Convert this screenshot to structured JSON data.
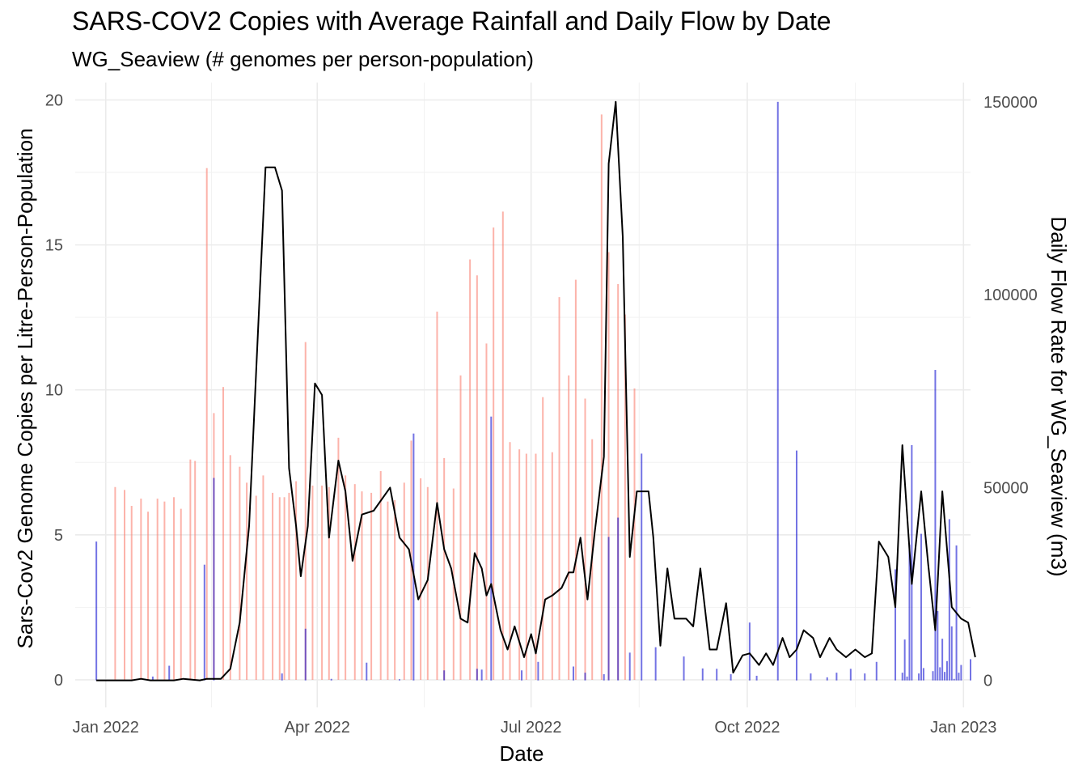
{
  "chart_data": {
    "type": "bar+line",
    "title": "SARS-COV2 Copies with Average Rainfall and Daily Flow by Date",
    "subtitle": "WG_Seaview (# genomes per person-population)",
    "xlabel": "Date",
    "ylabel_left": "Sars-Cov2 Genome Copies per Litre-Person-Population",
    "ylabel_right": "Daily Flow Rate for WG_Seaview (m3)",
    "xlim": [
      "2021-12-19",
      "2023-01-04"
    ],
    "x_ticks": [
      {
        "date": "2022-01-01",
        "label": "Jan 2022"
      },
      {
        "date": "2022-04-01",
        "label": "Apr 2022"
      },
      {
        "date": "2022-07-01",
        "label": "Jul 2022"
      },
      {
        "date": "2022-10-01",
        "label": "Oct 2022"
      },
      {
        "date": "2023-01-01",
        "label": "Jan 2023"
      }
    ],
    "y_left": {
      "min": -0.95,
      "max": 20.6,
      "ticks": [
        0,
        5,
        10,
        15,
        20
      ],
      "tick_labels": [
        "0",
        "5",
        "10",
        "15",
        "20"
      ]
    },
    "y_right": {
      "min": -7000,
      "max": 155000,
      "ticks": [
        0,
        50000,
        100000,
        150000
      ],
      "tick_labels": [
        "0",
        "50000",
        "100000",
        "150000"
      ]
    },
    "grid": true,
    "colors": {
      "sars_bars": "#fa8072",
      "rainfall_bars": "#0000cd",
      "flow_line": "#000000",
      "grid": "#ebebeb"
    },
    "series": [
      {
        "type": "bar",
        "axis": "left",
        "color": "#fa8072",
        "points": [
          [
            "2022-01-05",
            6.65
          ],
          [
            "2022-01-09",
            6.55
          ],
          [
            "2022-01-12",
            6.0
          ],
          [
            "2022-01-16",
            6.25
          ],
          [
            "2022-01-19",
            5.8
          ],
          [
            "2022-01-23",
            6.25
          ],
          [
            "2022-01-26",
            6.15
          ],
          [
            "2022-01-30",
            6.3
          ],
          [
            "2022-02-02",
            5.9
          ],
          [
            "2022-02-06",
            7.6
          ],
          [
            "2022-02-08",
            7.55
          ],
          [
            "2022-02-13",
            17.65
          ],
          [
            "2022-02-16",
            9.2
          ],
          [
            "2022-02-20",
            10.1
          ],
          [
            "2022-02-23",
            7.75
          ],
          [
            "2022-02-27",
            7.35
          ],
          [
            "2022-03-02",
            6.8
          ],
          [
            "2022-03-06",
            6.35
          ],
          [
            "2022-03-09",
            7.05
          ],
          [
            "2022-03-13",
            6.45
          ],
          [
            "2022-03-16",
            6.3
          ],
          [
            "2022-03-18",
            6.3
          ],
          [
            "2022-03-20",
            6.45
          ],
          [
            "2022-03-23",
            6.85
          ],
          [
            "2022-03-27",
            11.65
          ],
          [
            "2022-03-30",
            6.7
          ],
          [
            "2022-04-03",
            6.7
          ],
          [
            "2022-04-06",
            6.65
          ],
          [
            "2022-04-10",
            8.35
          ],
          [
            "2022-04-13",
            7.05
          ],
          [
            "2022-04-17",
            6.75
          ],
          [
            "2022-04-20",
            6.5
          ],
          [
            "2022-04-24",
            6.45
          ],
          [
            "2022-04-28",
            7.2
          ],
          [
            "2022-05-01",
            6.15
          ],
          [
            "2022-05-04",
            6.2
          ],
          [
            "2022-05-08",
            6.8
          ],
          [
            "2022-05-11",
            8.25
          ],
          [
            "2022-05-15",
            6.95
          ],
          [
            "2022-05-18",
            6.65
          ],
          [
            "2022-05-22",
            12.7
          ],
          [
            "2022-05-25",
            7.65
          ],
          [
            "2022-05-29",
            6.6
          ],
          [
            "2022-06-01",
            10.5
          ],
          [
            "2022-06-05",
            14.5
          ],
          [
            "2022-06-08",
            13.95
          ],
          [
            "2022-06-12",
            11.6
          ],
          [
            "2022-06-15",
            15.6
          ],
          [
            "2022-06-19",
            16.15
          ],
          [
            "2022-06-22",
            8.2
          ],
          [
            "2022-06-26",
            7.95
          ],
          [
            "2022-06-29",
            7.8
          ],
          [
            "2022-07-03",
            7.8
          ],
          [
            "2022-07-06",
            9.75
          ],
          [
            "2022-07-10",
            7.85
          ],
          [
            "2022-07-13",
            13.2
          ],
          [
            "2022-07-17",
            10.5
          ],
          [
            "2022-07-20",
            13.8
          ],
          [
            "2022-07-24",
            9.7
          ],
          [
            "2022-07-27",
            8.3
          ],
          [
            "2022-07-31",
            19.5
          ],
          [
            "2022-08-03",
            14.75
          ],
          [
            "2022-08-07",
            13.65
          ],
          [
            "2022-08-10",
            12.6
          ],
          [
            "2022-08-14",
            10.05
          ]
        ]
      },
      {
        "type": "bar",
        "axis": "right",
        "color": "#0000cd",
        "points": [
          [
            "2021-12-28",
            36000
          ],
          [
            "2022-01-21",
            1000
          ],
          [
            "2022-01-28",
            3800
          ],
          [
            "2022-02-12",
            30000
          ],
          [
            "2022-02-16",
            52500
          ],
          [
            "2022-03-17",
            1800
          ],
          [
            "2022-03-27",
            13400
          ],
          [
            "2022-04-07",
            400
          ],
          [
            "2022-04-22",
            4600
          ],
          [
            "2022-05-06",
            300
          ],
          [
            "2022-05-12",
            64000
          ],
          [
            "2022-05-25",
            2600
          ],
          [
            "2022-06-08",
            3000
          ],
          [
            "2022-06-10",
            2800
          ],
          [
            "2022-06-14",
            68400
          ],
          [
            "2022-06-27",
            2600
          ],
          [
            "2022-07-04",
            4800
          ],
          [
            "2022-07-19",
            3600
          ],
          [
            "2022-07-24",
            2000
          ],
          [
            "2022-08-01",
            1600
          ],
          [
            "2022-08-03",
            37200
          ],
          [
            "2022-08-07",
            42200
          ],
          [
            "2022-08-12",
            7200
          ],
          [
            "2022-08-17",
            58800
          ],
          [
            "2022-08-23",
            8600
          ],
          [
            "2022-09-04",
            6200
          ],
          [
            "2022-09-12",
            3100
          ],
          [
            "2022-09-18",
            3000
          ],
          [
            "2022-09-24",
            1600
          ],
          [
            "2022-10-02",
            15000
          ],
          [
            "2022-10-05",
            1200
          ],
          [
            "2022-10-14",
            150000
          ],
          [
            "2022-10-22",
            59600
          ],
          [
            "2022-10-28",
            1800
          ],
          [
            "2022-11-04",
            800
          ],
          [
            "2022-11-08",
            2000
          ],
          [
            "2022-11-14",
            3000
          ],
          [
            "2022-11-20",
            1800
          ],
          [
            "2022-11-25",
            4800
          ],
          [
            "2022-12-03",
            28800
          ],
          [
            "2022-12-10",
            61000
          ],
          [
            "2022-12-15",
            3200
          ],
          [
            "2022-12-21",
            18000
          ],
          [
            "2022-12-26",
            41800
          ],
          [
            "2022-12-30",
            2000
          ],
          [
            "2023-01-04",
            5500
          ],
          [
            "2022-12-31",
            4000
          ],
          [
            "2022-12-25",
            5000
          ],
          [
            "2022-12-28",
            400
          ],
          [
            "2022-12-29",
            35000
          ],
          [
            "2022-12-19",
            2400
          ],
          [
            "2022-12-20",
            80500
          ],
          [
            "2022-12-22",
            3400
          ],
          [
            "2022-12-23",
            10800
          ],
          [
            "2022-12-24",
            2200
          ],
          [
            "2022-12-27",
            14000
          ],
          [
            "2022-12-14",
            38000
          ],
          [
            "2022-12-06",
            2000
          ],
          [
            "2022-12-07",
            10600
          ],
          [
            "2022-12-08",
            1000
          ],
          [
            "2022-12-09",
            35200
          ],
          [
            "2022-12-13",
            1800
          ]
        ]
      },
      {
        "type": "line",
        "axis": "right",
        "color": "#000000",
        "points": [
          [
            "2021-12-28",
            0
          ],
          [
            "2022-01-04",
            0
          ],
          [
            "2022-01-08",
            0
          ],
          [
            "2022-01-12",
            0
          ],
          [
            "2022-01-16",
            400
          ],
          [
            "2022-01-20",
            0
          ],
          [
            "2022-01-25",
            0
          ],
          [
            "2022-01-30",
            0
          ],
          [
            "2022-02-03",
            400
          ],
          [
            "2022-02-10",
            0
          ],
          [
            "2022-02-13",
            400
          ],
          [
            "2022-02-19",
            400
          ],
          [
            "2022-02-23",
            3000
          ],
          [
            "2022-02-27",
            15000
          ],
          [
            "2022-03-03",
            40000
          ],
          [
            "2022-03-06",
            80000
          ],
          [
            "2022-03-10",
            133000
          ],
          [
            "2022-03-14",
            133000
          ],
          [
            "2022-03-17",
            127000
          ],
          [
            "2022-03-20",
            55000
          ],
          [
            "2022-03-23",
            40000
          ],
          [
            "2022-03-25",
            27000
          ],
          [
            "2022-03-28",
            40000
          ],
          [
            "2022-03-31",
            77000
          ],
          [
            "2022-04-03",
            74000
          ],
          [
            "2022-04-06",
            37000
          ],
          [
            "2022-04-10",
            57000
          ],
          [
            "2022-04-13",
            49000
          ],
          [
            "2022-04-16",
            31000
          ],
          [
            "2022-04-20",
            43000
          ],
          [
            "2022-04-25",
            44000
          ],
          [
            "2022-05-02",
            50000
          ],
          [
            "2022-05-06",
            37000
          ],
          [
            "2022-05-10",
            34000
          ],
          [
            "2022-05-14",
            21000
          ],
          [
            "2022-05-18",
            26000
          ],
          [
            "2022-05-22",
            46000
          ],
          [
            "2022-05-25",
            34000
          ],
          [
            "2022-05-28",
            29000
          ],
          [
            "2022-06-01",
            16000
          ],
          [
            "2022-06-04",
            15000
          ],
          [
            "2022-06-07",
            33000
          ],
          [
            "2022-06-10",
            29000
          ],
          [
            "2022-06-12",
            22000
          ],
          [
            "2022-06-14",
            25000
          ],
          [
            "2022-06-18",
            13000
          ],
          [
            "2022-06-21",
            8000
          ],
          [
            "2022-06-24",
            14000
          ],
          [
            "2022-06-28",
            6000
          ],
          [
            "2022-07-01",
            12000
          ],
          [
            "2022-07-03",
            7000
          ],
          [
            "2022-07-07",
            21000
          ],
          [
            "2022-07-10",
            22000
          ],
          [
            "2022-07-14",
            24000
          ],
          [
            "2022-07-17",
            28000
          ],
          [
            "2022-07-19",
            28000
          ],
          [
            "2022-07-22",
            37000
          ],
          [
            "2022-07-25",
            21000
          ],
          [
            "2022-07-28",
            38000
          ],
          [
            "2022-08-01",
            58000
          ],
          [
            "2022-08-03",
            134000
          ],
          [
            "2022-08-06",
            150000
          ],
          [
            "2022-08-09",
            115000
          ],
          [
            "2022-08-12",
            32000
          ],
          [
            "2022-08-15",
            49000
          ],
          [
            "2022-08-20",
            49000
          ],
          [
            "2022-08-22",
            37000
          ],
          [
            "2022-08-25",
            9000
          ],
          [
            "2022-08-28",
            29000
          ],
          [
            "2022-08-31",
            16000
          ],
          [
            "2022-09-05",
            16000
          ],
          [
            "2022-09-08",
            14000
          ],
          [
            "2022-09-11",
            29000
          ],
          [
            "2022-09-15",
            8000
          ],
          [
            "2022-09-18",
            8000
          ],
          [
            "2022-09-22",
            20000
          ],
          [
            "2022-09-25",
            2000
          ],
          [
            "2022-09-29",
            6500
          ],
          [
            "2022-10-02",
            7000
          ],
          [
            "2022-10-06",
            4000
          ],
          [
            "2022-10-09",
            7000
          ],
          [
            "2022-10-12",
            4000
          ],
          [
            "2022-10-16",
            11000
          ],
          [
            "2022-10-19",
            6000
          ],
          [
            "2022-10-22",
            8000
          ],
          [
            "2022-10-25",
            13000
          ],
          [
            "2022-10-29",
            11000
          ],
          [
            "2022-11-01",
            6000
          ],
          [
            "2022-11-05",
            11000
          ],
          [
            "2022-11-08",
            8000
          ],
          [
            "2022-11-12",
            6000
          ],
          [
            "2022-11-16",
            8000
          ],
          [
            "2022-11-20",
            6000
          ],
          [
            "2022-11-23",
            7000
          ],
          [
            "2022-11-26",
            36000
          ],
          [
            "2022-11-30",
            32000
          ],
          [
            "2022-12-03",
            19000
          ],
          [
            "2022-12-06",
            61000
          ],
          [
            "2022-12-10",
            25000
          ],
          [
            "2022-12-14",
            49000
          ],
          [
            "2022-12-17",
            30000
          ],
          [
            "2022-12-20",
            13000
          ],
          [
            "2022-12-23",
            49000
          ],
          [
            "2022-12-27",
            19000
          ],
          [
            "2022-12-31",
            16000
          ],
          [
            "2023-01-03",
            15000
          ],
          [
            "2023-01-06",
            6000
          ]
        ]
      }
    ]
  }
}
